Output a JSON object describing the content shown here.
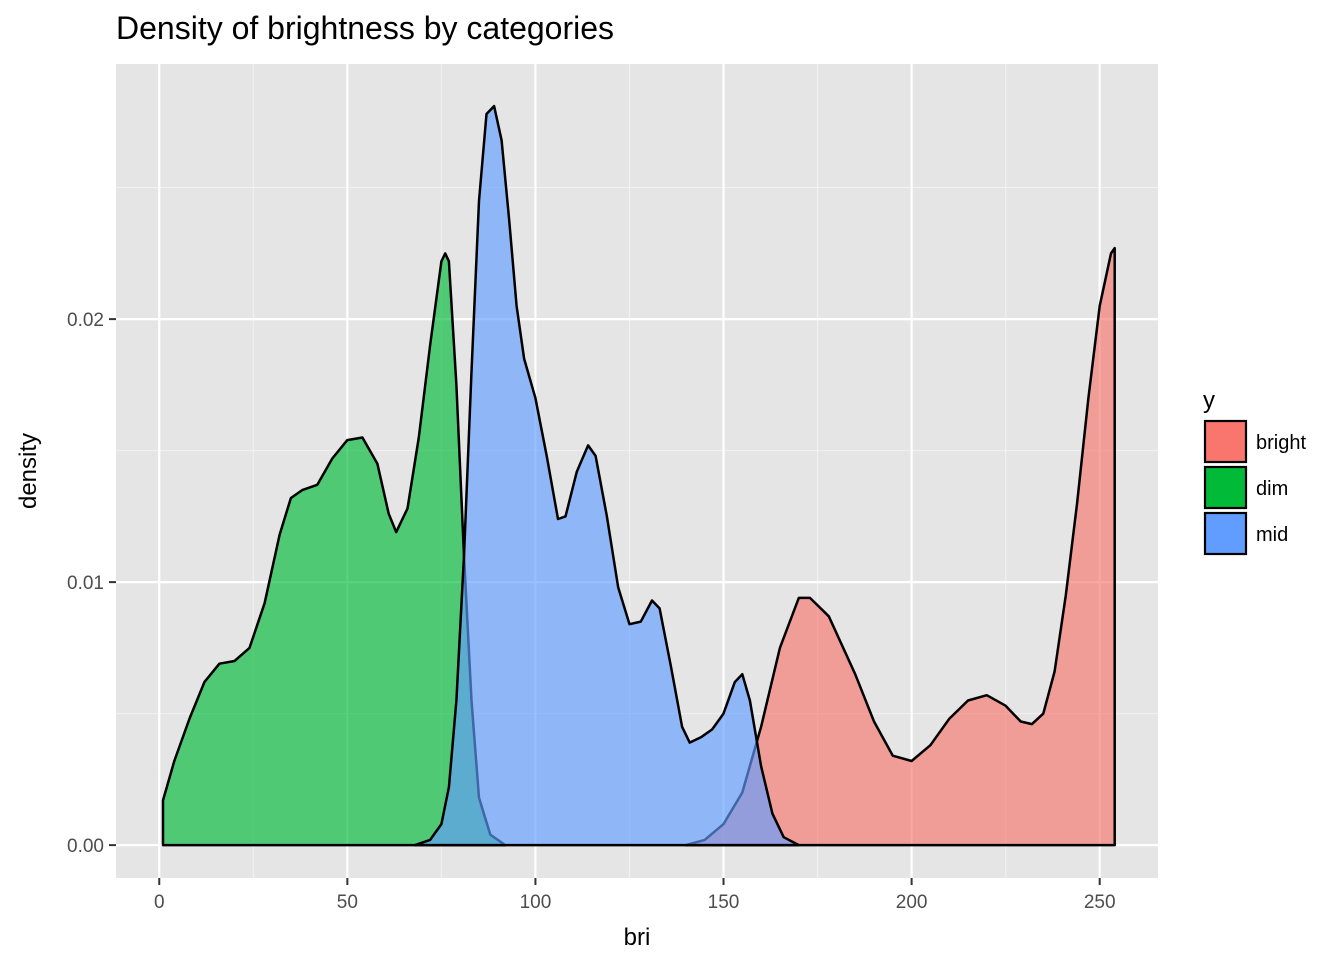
{
  "chart_data": {
    "type": "area",
    "title": "Density of brightness by categories",
    "xlabel": "bri",
    "ylabel": "density",
    "xlim": [
      -11.5,
      265.5
    ],
    "ylim": [
      -0.00125,
      0.0297
    ],
    "x_ticks": [
      0,
      50,
      100,
      150,
      200,
      250
    ],
    "x_tick_labels": [
      "0",
      "50",
      "100",
      "150",
      "200",
      "250"
    ],
    "y_ticks": [
      0.0,
      0.01,
      0.02
    ],
    "y_tick_labels": [
      "0.00",
      "0.01",
      "0.02"
    ],
    "grid": true,
    "legend": {
      "title": "y",
      "position": "right",
      "entries": [
        "bright",
        "dim",
        "mid"
      ]
    },
    "series": [
      {
        "name": "bright",
        "color": "#F8766D",
        "points": [
          [
            140,
            0
          ],
          [
            145,
            0.0002
          ],
          [
            150,
            0.0008
          ],
          [
            155,
            0.002
          ],
          [
            160,
            0.0045
          ],
          [
            165,
            0.0075
          ],
          [
            170,
            0.0094
          ],
          [
            173,
            0.0094
          ],
          [
            178,
            0.0087
          ],
          [
            185,
            0.0065
          ],
          [
            190,
            0.0047
          ],
          [
            195,
            0.0034
          ],
          [
            200,
            0.0032
          ],
          [
            205,
            0.0038
          ],
          [
            210,
            0.0048
          ],
          [
            215,
            0.0055
          ],
          [
            220,
            0.0057
          ],
          [
            225,
            0.0053
          ],
          [
            229,
            0.0047
          ],
          [
            232,
            0.0046
          ],
          [
            235,
            0.005
          ],
          [
            238,
            0.0066
          ],
          [
            241,
            0.0095
          ],
          [
            244,
            0.013
          ],
          [
            247,
            0.017
          ],
          [
            250,
            0.0205
          ],
          [
            253,
            0.0225
          ],
          [
            254,
            0.0227
          ]
        ]
      },
      {
        "name": "dim",
        "color": "#00BA38",
        "points": [
          [
            1,
            0.0017
          ],
          [
            4,
            0.0032
          ],
          [
            8,
            0.0048
          ],
          [
            12,
            0.0062
          ],
          [
            16,
            0.0069
          ],
          [
            20,
            0.007
          ],
          [
            24,
            0.0075
          ],
          [
            28,
            0.0092
          ],
          [
            32,
            0.0118
          ],
          [
            35,
            0.0132
          ],
          [
            38,
            0.0135
          ],
          [
            42,
            0.0137
          ],
          [
            46,
            0.0147
          ],
          [
            50,
            0.0154
          ],
          [
            54,
            0.0155
          ],
          [
            58,
            0.0145
          ],
          [
            61,
            0.0126
          ],
          [
            63,
            0.0119
          ],
          [
            66,
            0.0128
          ],
          [
            69,
            0.0155
          ],
          [
            72,
            0.019
          ],
          [
            75,
            0.0222
          ],
          [
            76,
            0.0225
          ],
          [
            77,
            0.0222
          ],
          [
            79,
            0.0175
          ],
          [
            81,
            0.011
          ],
          [
            83,
            0.0055
          ],
          [
            85,
            0.0018
          ],
          [
            88,
            0.0004
          ],
          [
            92,
            0.0
          ]
        ]
      },
      {
        "name": "mid",
        "color": "#619CFF",
        "points": [
          [
            68,
            0
          ],
          [
            72,
            0.0002
          ],
          [
            75,
            0.0008
          ],
          [
            77,
            0.0022
          ],
          [
            79,
            0.0055
          ],
          [
            81,
            0.011
          ],
          [
            83,
            0.018
          ],
          [
            85,
            0.0245
          ],
          [
            87,
            0.0278
          ],
          [
            89,
            0.0281
          ],
          [
            91,
            0.0268
          ],
          [
            93,
            0.0238
          ],
          [
            95,
            0.0205
          ],
          [
            97,
            0.0185
          ],
          [
            100,
            0.017
          ],
          [
            103,
            0.0148
          ],
          [
            106,
            0.0124
          ],
          [
            108,
            0.0125
          ],
          [
            111,
            0.0142
          ],
          [
            114,
            0.0152
          ],
          [
            116,
            0.0148
          ],
          [
            119,
            0.0125
          ],
          [
            122,
            0.0098
          ],
          [
            125,
            0.0084
          ],
          [
            128,
            0.0085
          ],
          [
            131,
            0.0093
          ],
          [
            133,
            0.009
          ],
          [
            136,
            0.0068
          ],
          [
            139,
            0.0045
          ],
          [
            141,
            0.0039
          ],
          [
            144,
            0.0041
          ],
          [
            147,
            0.0044
          ],
          [
            150,
            0.005
          ],
          [
            153,
            0.0062
          ],
          [
            155,
            0.0065
          ],
          [
            157,
            0.0055
          ],
          [
            160,
            0.003
          ],
          [
            163,
            0.0012
          ],
          [
            166,
            0.0003
          ],
          [
            170,
            0.0
          ]
        ]
      }
    ]
  }
}
